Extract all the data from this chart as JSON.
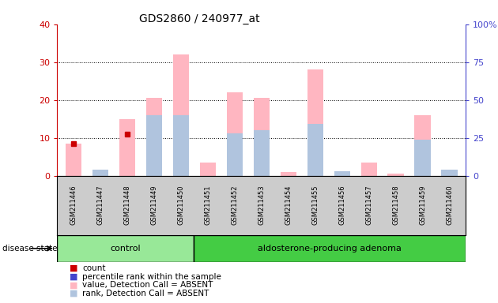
{
  "title": "GDS2860 / 240977_at",
  "samples": [
    "GSM211446",
    "GSM211447",
    "GSM211448",
    "GSM211449",
    "GSM211450",
    "GSM211451",
    "GSM211452",
    "GSM211453",
    "GSM211454",
    "GSM211455",
    "GSM211456",
    "GSM211457",
    "GSM211458",
    "GSM211459",
    "GSM211460"
  ],
  "pink_bars": [
    8.5,
    1.2,
    15.0,
    20.5,
    32.0,
    3.5,
    22.0,
    20.5,
    1.0,
    28.0,
    1.0,
    3.5,
    0.5,
    16.0,
    1.2
  ],
  "blue_bars_pct": [
    0,
    4,
    0,
    40,
    40,
    0,
    28,
    30,
    0,
    34,
    3,
    0,
    0,
    24,
    4
  ],
  "red_square_vals": [
    8.5,
    0,
    11.0,
    0,
    0,
    0,
    0,
    0,
    0,
    0,
    0,
    0,
    0,
    0,
    0
  ],
  "blue_square_pct": [
    0,
    0,
    0,
    0,
    0,
    0,
    0,
    0,
    0,
    0,
    0,
    0,
    0,
    0,
    0
  ],
  "control_count": 5,
  "ylim_left": [
    0,
    40
  ],
  "ylim_right": [
    0,
    100
  ],
  "left_ticks": [
    0,
    10,
    20,
    30,
    40
  ],
  "right_ticks": [
    0,
    25,
    50,
    75,
    100
  ],
  "right_tick_labels": [
    "0",
    "25",
    "50",
    "75",
    "100%"
  ],
  "pink_color": "#ffb6c1",
  "blue_bar_color": "#b0c4de",
  "red_dot_color": "#cc0000",
  "blue_dot_color": "#4444cc",
  "left_tick_color": "#cc0000",
  "right_tick_color": "#4444cc",
  "control_color": "#98e898",
  "apa_color": "#44cc44",
  "bar_bg_color": "#cccccc",
  "grid_color": "#000000"
}
